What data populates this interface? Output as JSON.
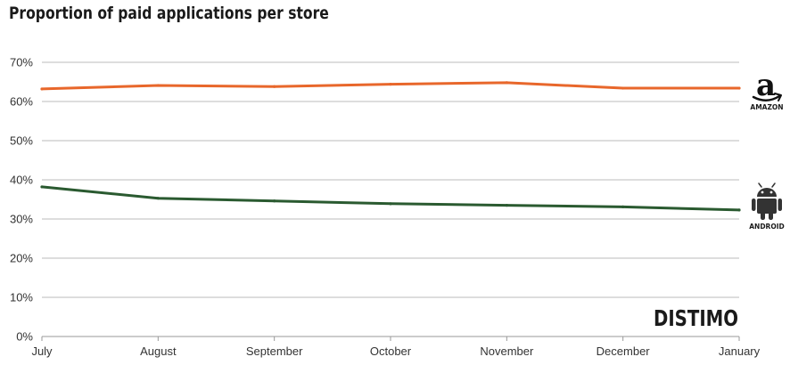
{
  "chart_data": {
    "type": "line",
    "title": "Proportion of paid applications per store",
    "xlabel": "",
    "ylabel": "",
    "categories": [
      "July",
      "August",
      "September",
      "October",
      "November",
      "December",
      "January"
    ],
    "ylim": [
      0,
      70
    ],
    "yticks": [
      0,
      10,
      20,
      30,
      40,
      50,
      60,
      70
    ],
    "ytick_labels": [
      "0%",
      "10%",
      "20%",
      "30%",
      "40%",
      "50%",
      "60%",
      "70%"
    ],
    "grid": true,
    "legend_placement": "right",
    "series": [
      {
        "name": "AMAZON",
        "color": "#e8672b",
        "icon": "amazon-logo-icon",
        "values": [
          63.2,
          64.1,
          63.8,
          64.4,
          64.8,
          63.4,
          63.4
        ]
      },
      {
        "name": "ANDROID",
        "color": "#2a5a30",
        "icon": "android-robot-icon",
        "values": [
          38.2,
          35.3,
          34.6,
          33.9,
          33.5,
          33.1,
          32.3
        ]
      }
    ],
    "watermark": "DISTIMO"
  }
}
